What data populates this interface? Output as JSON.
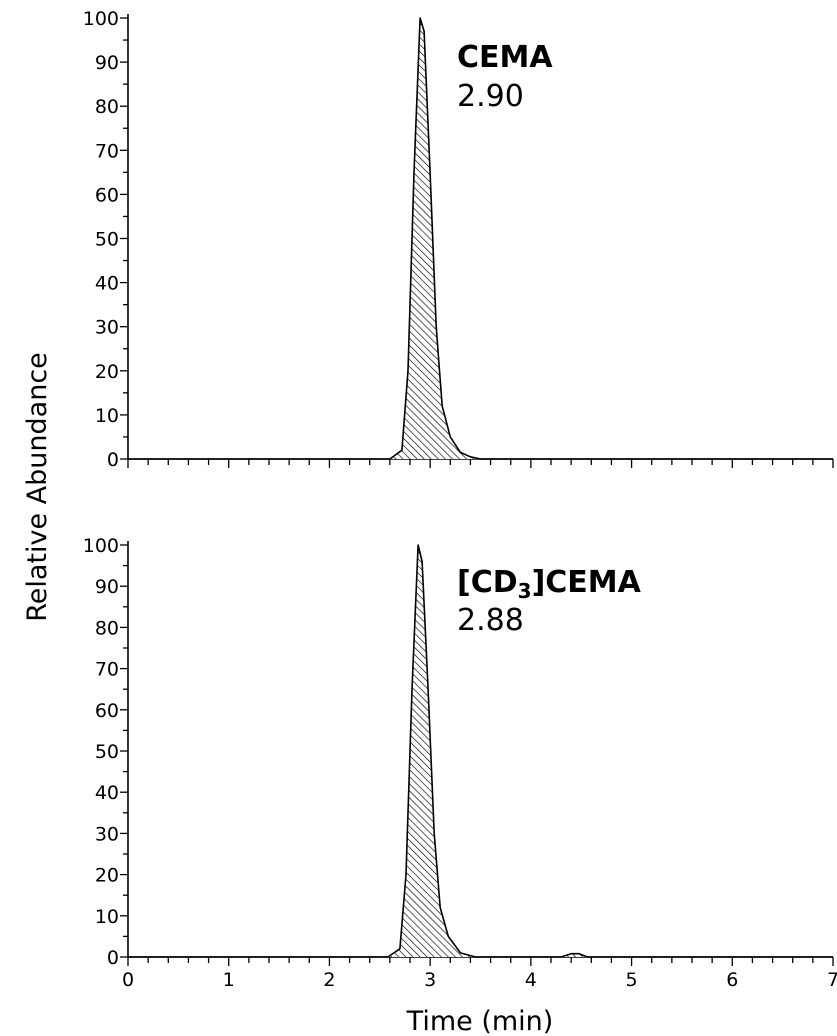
{
  "chart_data": {
    "type": "line",
    "ylabel": "Relative Abundance",
    "xlabel": "Time (min)",
    "xlim": [
      0,
      7
    ],
    "ylim": [
      0,
      100
    ],
    "x_ticks": [
      "0",
      "1",
      "2",
      "3",
      "4",
      "5",
      "6",
      "7"
    ],
    "y_ticks": [
      "0",
      "10",
      "20",
      "30",
      "40",
      "50",
      "60",
      "70",
      "80",
      "90",
      "100"
    ],
    "fill": "hatched",
    "panels": [
      {
        "name": "CEMA",
        "label_value": "2.90",
        "points": [
          [
            0,
            0
          ],
          [
            2.6,
            0
          ],
          [
            2.72,
            2
          ],
          [
            2.78,
            20
          ],
          [
            2.84,
            65
          ],
          [
            2.9,
            100
          ],
          [
            2.94,
            97
          ],
          [
            3.0,
            65
          ],
          [
            3.06,
            30
          ],
          [
            3.12,
            12
          ],
          [
            3.2,
            5
          ],
          [
            3.3,
            1.5
          ],
          [
            3.4,
            0.5
          ],
          [
            3.5,
            0
          ],
          [
            7,
            0
          ]
        ]
      },
      {
        "name_parts": [
          "[CD",
          "3",
          "]CEMA"
        ],
        "label_value": "2.88",
        "points": [
          [
            0,
            0
          ],
          [
            2.58,
            0
          ],
          [
            2.7,
            2
          ],
          [
            2.76,
            20
          ],
          [
            2.82,
            65
          ],
          [
            2.88,
            100
          ],
          [
            2.92,
            96
          ],
          [
            2.98,
            65
          ],
          [
            3.04,
            30
          ],
          [
            3.1,
            12
          ],
          [
            3.18,
            5
          ],
          [
            3.3,
            1
          ],
          [
            3.45,
            0
          ],
          [
            4.3,
            0
          ],
          [
            4.4,
            0.8
          ],
          [
            4.48,
            0.8
          ],
          [
            4.56,
            0
          ],
          [
            7,
            0
          ]
        ]
      }
    ]
  }
}
